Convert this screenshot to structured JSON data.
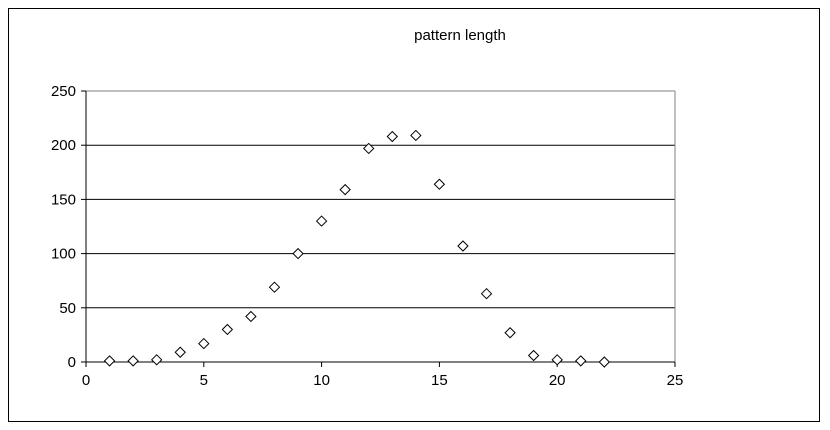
{
  "chart_data": {
    "type": "scatter",
    "title": "pattern length",
    "xlabel": "",
    "ylabel": "",
    "xlim": [
      0,
      25
    ],
    "ylim": [
      0,
      250
    ],
    "xticks": [
      0,
      5,
      10,
      15,
      20,
      25
    ],
    "yticks": [
      0,
      50,
      100,
      150,
      200,
      250
    ],
    "grid": "horizontal",
    "marker": "diamond-open",
    "series": [
      {
        "x": [
          1,
          2,
          3,
          4,
          5,
          6,
          7,
          8,
          9,
          10,
          11,
          12,
          13,
          14,
          15,
          16,
          17,
          18,
          19,
          20,
          21,
          22
        ],
        "y": [
          1,
          1,
          2,
          9,
          17,
          30,
          42,
          69,
          100,
          130,
          159,
          197,
          208,
          209,
          164,
          107,
          63,
          27,
          6,
          2,
          1,
          0
        ]
      }
    ]
  }
}
